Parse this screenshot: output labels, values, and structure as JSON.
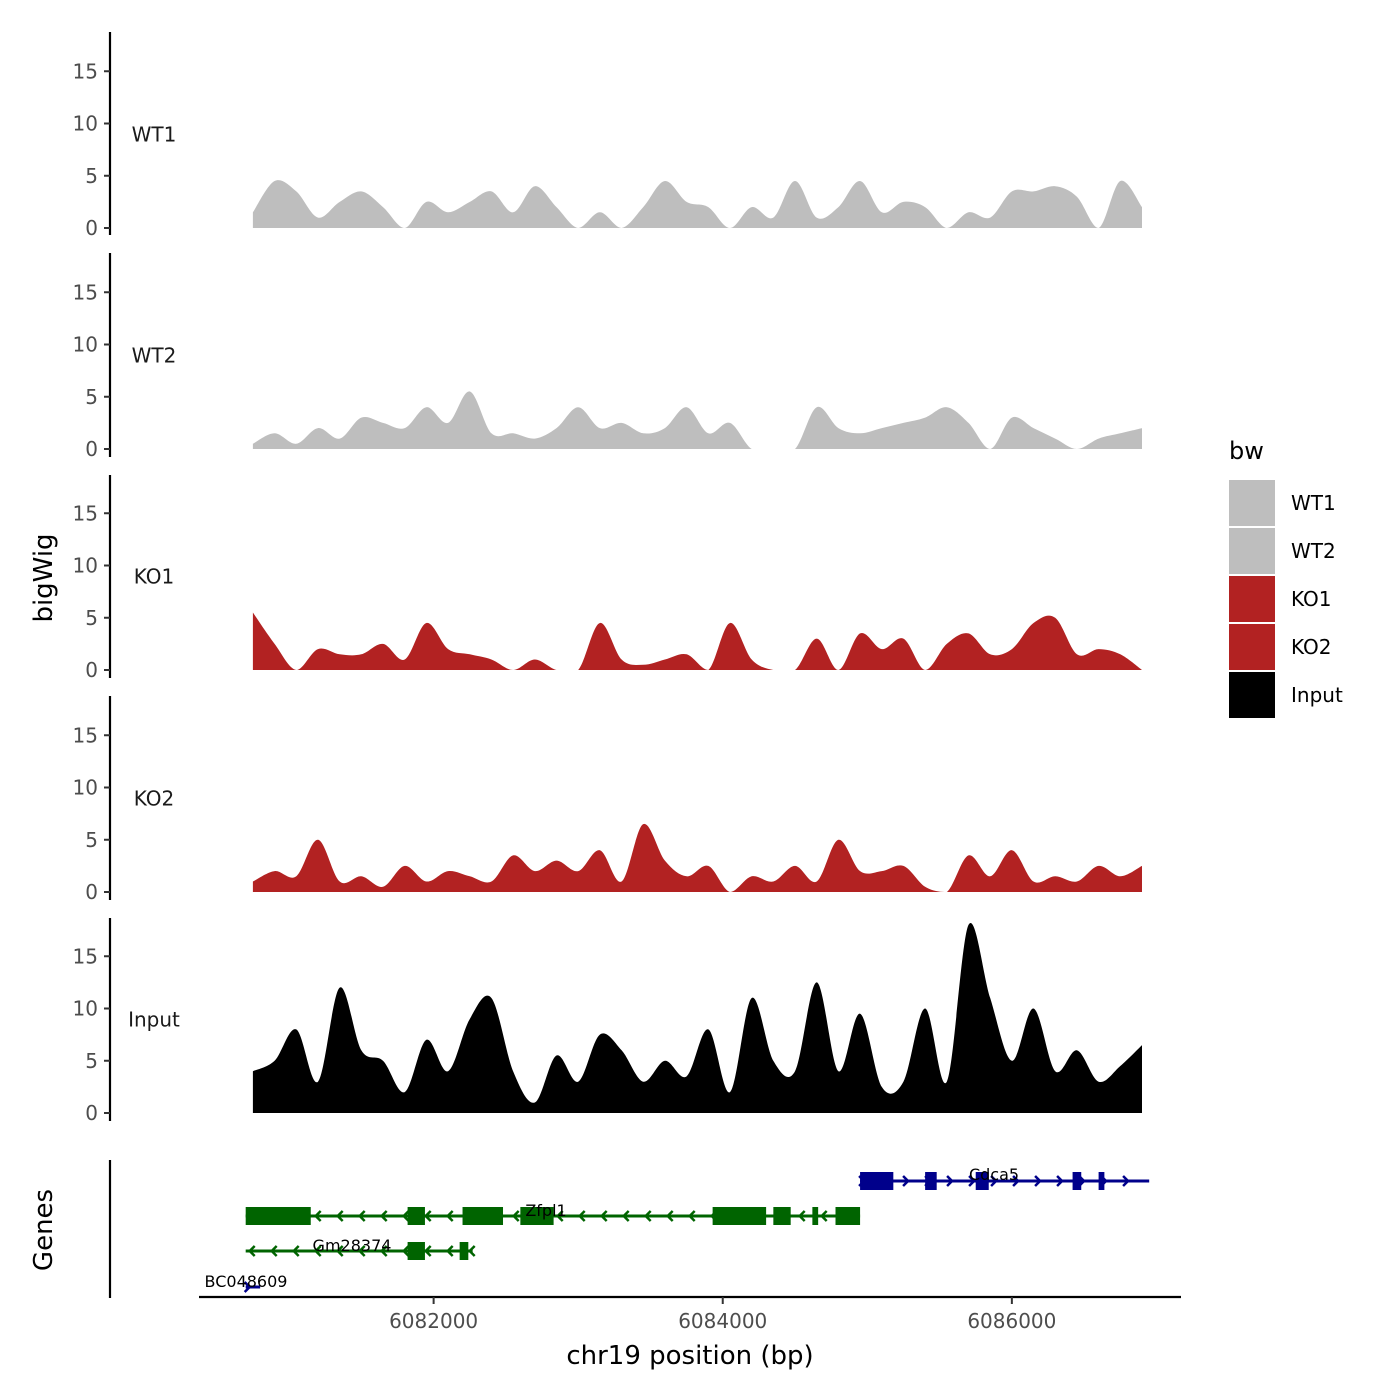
{
  "chart_data": {
    "type": "area",
    "title": "",
    "ylabel": "bigWig",
    "genes_label": "Genes",
    "xlabel": "chr19 position (bp)",
    "xlim": [
      6080377,
      6087170
    ],
    "ylim": [
      0,
      18.5
    ],
    "x_ticks": [
      6082000,
      6084000,
      6086000
    ],
    "x_tick_labels": [
      "6082000",
      "6084000",
      "6086000"
    ],
    "y_ticks": [
      0,
      5,
      10,
      15
    ],
    "y_tick_labels": [
      "0",
      "5",
      "10",
      "15"
    ],
    "signal_x": [
      6080750,
      6080900,
      6081050,
      6081200,
      6081350,
      6081500,
      6081650,
      6081800,
      6081950,
      6082100,
      6082250,
      6082400,
      6082550,
      6082700,
      6082850,
      6083000,
      6083150,
      6083300,
      6083450,
      6083600,
      6083750,
      6083900,
      6084050,
      6084200,
      6084350,
      6084500,
      6084650,
      6084800,
      6084950,
      6085100,
      6085250,
      6085400,
      6085550,
      6085700,
      6085850,
      6086000,
      6086150,
      6086300,
      6086450,
      6086600,
      6086750,
      6086900
    ],
    "series": [
      {
        "name": "WT1",
        "color": "#bebebe",
        "values": [
          1.5,
          4.5,
          3.5,
          1.0,
          2.5,
          3.5,
          2.0,
          0.0,
          2.5,
          1.5,
          2.5,
          3.5,
          1.5,
          4.0,
          2.0,
          0.0,
          1.5,
          0.0,
          2.0,
          4.5,
          2.5,
          2.0,
          0.0,
          2.0,
          1.0,
          4.5,
          1.0,
          2.0,
          4.5,
          1.5,
          2.5,
          2.0,
          0.0,
          1.5,
          1.0,
          3.5,
          3.5,
          4.0,
          3.0,
          0.0,
          4.5,
          2.0
        ]
      },
      {
        "name": "WT2",
        "color": "#bebebe",
        "values": [
          0.5,
          1.5,
          0.5,
          2.0,
          1.0,
          3.0,
          2.5,
          2.0,
          4.0,
          2.5,
          5.5,
          1.5,
          1.5,
          1.0,
          2.0,
          4.0,
          2.0,
          2.5,
          1.5,
          2.0,
          4.0,
          1.5,
          2.5,
          0.0,
          0.0,
          0.0,
          4.0,
          2.0,
          1.5,
          2.0,
          2.5,
          3.0,
          4.0,
          2.5,
          0.0,
          3.0,
          2.0,
          1.0,
          0.0,
          1.0,
          1.5,
          2.0
        ]
      },
      {
        "name": "KO1",
        "color": "#b22222",
        "values": [
          5.5,
          2.5,
          0.0,
          2.0,
          1.5,
          1.5,
          2.5,
          1.0,
          4.5,
          2.0,
          1.5,
          1.0,
          0.0,
          1.0,
          0.0,
          0.0,
          4.5,
          1.0,
          0.5,
          1.0,
          1.5,
          0.0,
          4.5,
          1.0,
          0.0,
          0.0,
          3.0,
          0.0,
          3.5,
          2.0,
          3.0,
          0.0,
          2.5,
          3.5,
          1.5,
          2.0,
          4.5,
          5.0,
          1.5,
          2.0,
          1.5,
          0.0
        ]
      },
      {
        "name": "KO2",
        "color": "#b22222",
        "values": [
          1.0,
          2.0,
          1.5,
          5.0,
          1.0,
          1.5,
          0.5,
          2.5,
          1.0,
          2.0,
          1.5,
          1.0,
          3.5,
          2.0,
          3.0,
          2.0,
          4.0,
          1.0,
          6.5,
          3.0,
          1.5,
          2.5,
          0.0,
          1.5,
          1.0,
          2.5,
          1.0,
          5.0,
          2.0,
          2.0,
          2.5,
          0.5,
          0.0,
          3.5,
          1.5,
          4.0,
          1.0,
          1.5,
          1.0,
          2.5,
          1.5,
          2.5
        ]
      },
      {
        "name": "Input",
        "color": "#000000",
        "values": [
          4.0,
          5.0,
          8.0,
          3.0,
          12.0,
          6.0,
          5.0,
          2.0,
          7.0,
          4.0,
          9.0,
          11.0,
          4.0,
          1.0,
          5.5,
          3.0,
          7.5,
          6.0,
          3.0,
          5.0,
          3.5,
          8.0,
          2.0,
          11.0,
          5.0,
          4.0,
          12.5,
          4.0,
          9.5,
          2.5,
          3.0,
          10.0,
          3.0,
          18.0,
          11.0,
          5.0,
          10.0,
          4.0,
          6.0,
          3.0,
          4.5,
          6.5
        ]
      }
    ],
    "genes": [
      {
        "name": "Cdca5",
        "color": "#00008b",
        "strand": "+",
        "row": 0,
        "start": 6084950,
        "end": 6086950,
        "exons": [
          [
            6084950,
            6085180
          ],
          [
            6085400,
            6085480
          ],
          [
            6085750,
            6085840
          ],
          [
            6086420,
            6086480
          ],
          [
            6086600,
            6086640
          ]
        ]
      },
      {
        "name": "Zfpl1",
        "color": "#006400",
        "strand": "-",
        "row": 1,
        "start": 6080700,
        "end": 6084950,
        "exons": [
          [
            6080700,
            6081150
          ],
          [
            6081820,
            6081940
          ],
          [
            6082200,
            6082480
          ],
          [
            6082600,
            6082830
          ],
          [
            6083930,
            6084300
          ],
          [
            6084350,
            6084470
          ],
          [
            6084620,
            6084660
          ],
          [
            6084780,
            6084950
          ]
        ]
      },
      {
        "name": "Gm28374",
        "color": "#006400",
        "strand": "-",
        "row": 2,
        "start": 6080700,
        "end": 6082270,
        "exons": [
          [
            6081820,
            6081940
          ],
          [
            6082180,
            6082240
          ]
        ]
      },
      {
        "name": "BC048609",
        "color": "#00008b",
        "strand": "+",
        "row": 3,
        "start": 6080700,
        "end": 6080800,
        "exons": []
      }
    ]
  },
  "legend": {
    "title": "bw",
    "items": [
      {
        "label": "WT1",
        "color": "#bebebe"
      },
      {
        "label": "WT2",
        "color": "#bebebe"
      },
      {
        "label": "KO1",
        "color": "#b22222"
      },
      {
        "label": "KO2",
        "color": "#b22222"
      },
      {
        "label": "Input",
        "color": "#000000"
      }
    ]
  }
}
